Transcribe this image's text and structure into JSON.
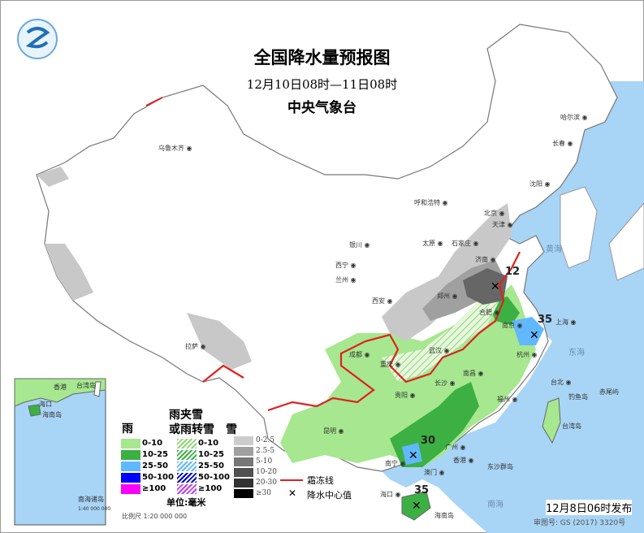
{
  "header": {
    "title": "全国降水量预报图",
    "period": "12月10日08时—11日08时",
    "issuer": "中央气象台"
  },
  "colors": {
    "sea": "#a8d4f5",
    "rain_0_10": "#a6e78f",
    "rain_10_25": "#3cb043",
    "rain_25_50": "#61b8ff",
    "rain_50_100": "#0000fe",
    "rain_100": "#fa00fa",
    "frost_line": "#e02020",
    "land": "#ffffff"
  },
  "legend": {
    "rain_heading": "雨",
    "sleet_heading_1": "雨夹雪",
    "sleet_heading_2": "或雨转雪",
    "snow_heading": "雪",
    "rain": [
      {
        "label": "0-10",
        "color": "#a6e78f"
      },
      {
        "label": "10-25",
        "color": "#3cb043"
      },
      {
        "label": "25-50",
        "color": "#61b8ff"
      },
      {
        "label": "50-100",
        "color": "#0000fe"
      },
      {
        "label": "≥100",
        "color": "#fa00fa"
      }
    ],
    "sleet": [
      {
        "label": "0-10",
        "color": "#a6e78f"
      },
      {
        "label": "10-25",
        "color": "#3cb043"
      },
      {
        "label": "25-50",
        "color": "#61b8ff"
      },
      {
        "label": "50-100",
        "color": "#0000fe"
      },
      {
        "label": "≥100",
        "color": "#c040e0"
      }
    ],
    "snow": [
      {
        "label": "0-2.5",
        "color": "#cccccc"
      },
      {
        "label": "2.5-5",
        "color": "#a0a0a0"
      },
      {
        "label": "5-10",
        "color": "#777777"
      },
      {
        "label": "10-20",
        "color": "#505050"
      },
      {
        "label": "20-30",
        "color": "#333333"
      },
      {
        "label": "≥30",
        "color": "#000000"
      }
    ],
    "unit": "单位:毫米",
    "scale": "比例尺   1:20 000 000",
    "frost_line": "霜冻线",
    "center": "降水中心值"
  },
  "centers": [
    {
      "value": "12"
    },
    {
      "value": "35"
    },
    {
      "value": "30"
    },
    {
      "value": "35"
    }
  ],
  "cities": [
    "乌鲁木齐",
    "哈尔滨",
    "长春",
    "沈阳",
    "呼和浩特",
    "北京",
    "天津",
    "银川",
    "太原",
    "石家庄",
    "济南",
    "西宁",
    "兰州",
    "西安",
    "郑州",
    "南京",
    "合肥",
    "上海",
    "成都",
    "武汉",
    "杭州",
    "拉萨",
    "重庆",
    "长沙",
    "南昌",
    "福州",
    "贵阳",
    "昆明",
    "台北",
    "南宁",
    "广州",
    "香港",
    "澳门",
    "海口"
  ],
  "labels": {
    "sea_huang": "黄海",
    "sea_dong": "东海",
    "sea_nan": "南海",
    "taiwan": "台湾岛",
    "hainan": "海南岛",
    "dongsha": "东沙群岛",
    "diaoyu": "钓鱼岛",
    "chiwei": "赤尾屿"
  },
  "inset": {
    "title": "南海诸岛",
    "scale": "1:40 000 000",
    "labels": [
      "香港",
      "台湾岛",
      "海南岛",
      "海口"
    ]
  },
  "footer": {
    "issued": "12月8日06时发布",
    "approval": "审图号: GS (2017) 3320号"
  }
}
